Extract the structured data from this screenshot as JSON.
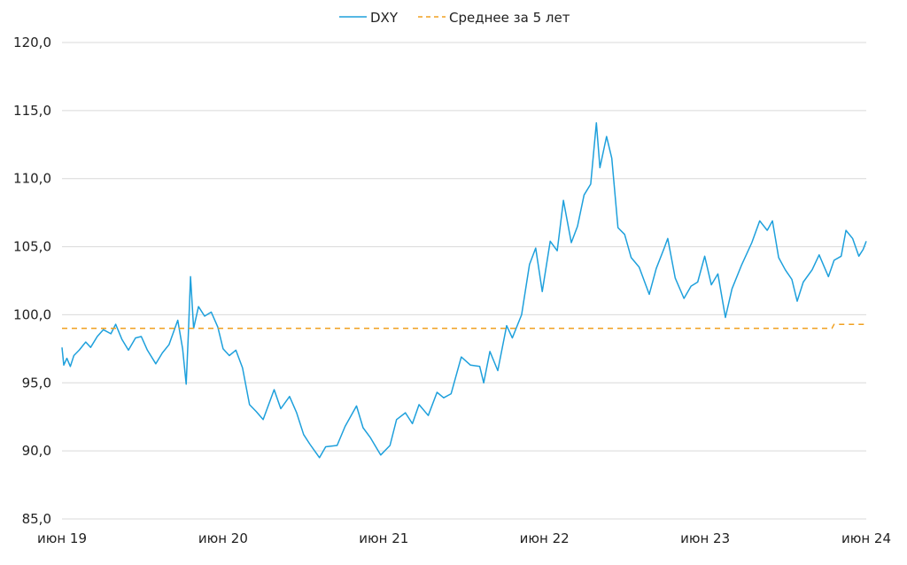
{
  "chart_data": {
    "type": "line",
    "title": "",
    "xlabel": "",
    "ylabel": "",
    "ylim": [
      85,
      120
    ],
    "yticks": [
      "85,0",
      "90,0",
      "95,0",
      "100,0",
      "105,0",
      "110,0",
      "115,0",
      "120,0"
    ],
    "ytick_values": [
      85,
      90,
      95,
      100,
      105,
      110,
      115,
      120
    ],
    "xticks": [
      {
        "label": "июн 19",
        "date": "2019-06-01"
      },
      {
        "label": "июн 20",
        "date": "2020-06-01"
      },
      {
        "label": "июн 21",
        "date": "2021-06-01"
      },
      {
        "label": "июн 22",
        "date": "2022-06-01"
      },
      {
        "label": "июн 23",
        "date": "2023-06-01"
      },
      {
        "label": "июн 24",
        "date": "2024-06-01"
      }
    ],
    "xlim": [
      "2019-06-01",
      "2024-06-01"
    ],
    "grid": "horizontal",
    "legend": "top-center",
    "series": [
      {
        "name": "DXY",
        "color": "#1ea0dc",
        "style": "solid",
        "points": [
          [
            "2019-06-01",
            97.6
          ],
          [
            "2019-06-05",
            96.3
          ],
          [
            "2019-06-12",
            96.8
          ],
          [
            "2019-06-20",
            96.2
          ],
          [
            "2019-06-28",
            97.0
          ],
          [
            "2019-07-10",
            97.4
          ],
          [
            "2019-07-25",
            98.0
          ],
          [
            "2019-08-05",
            97.6
          ],
          [
            "2019-08-20",
            98.4
          ],
          [
            "2019-09-03",
            98.9
          ],
          [
            "2019-09-20",
            98.6
          ],
          [
            "2019-10-01",
            99.3
          ],
          [
            "2019-10-15",
            98.2
          ],
          [
            "2019-10-30",
            97.4
          ],
          [
            "2019-11-15",
            98.3
          ],
          [
            "2019-11-28",
            98.4
          ],
          [
            "2019-12-12",
            97.4
          ],
          [
            "2019-12-31",
            96.4
          ],
          [
            "2020-01-15",
            97.2
          ],
          [
            "2020-01-30",
            97.8
          ],
          [
            "2020-02-19",
            99.6
          ],
          [
            "2020-03-01",
            97.5
          ],
          [
            "2020-03-09",
            94.9
          ],
          [
            "2020-03-14",
            98.5
          ],
          [
            "2020-03-19",
            102.8
          ],
          [
            "2020-03-26",
            99.0
          ],
          [
            "2020-04-06",
            100.6
          ],
          [
            "2020-04-20",
            99.9
          ],
          [
            "2020-05-05",
            100.2
          ],
          [
            "2020-05-20",
            99.1
          ],
          [
            "2020-06-01",
            97.5
          ],
          [
            "2020-06-15",
            97.0
          ],
          [
            "2020-06-30",
            97.4
          ],
          [
            "2020-07-15",
            96.1
          ],
          [
            "2020-07-31",
            93.4
          ],
          [
            "2020-08-15",
            92.9
          ],
          [
            "2020-08-31",
            92.3
          ],
          [
            "2020-09-25",
            94.5
          ],
          [
            "2020-10-10",
            93.1
          ],
          [
            "2020-10-30",
            94.0
          ],
          [
            "2020-11-15",
            92.8
          ],
          [
            "2020-12-01",
            91.2
          ],
          [
            "2020-12-15",
            90.5
          ],
          [
            "2021-01-06",
            89.5
          ],
          [
            "2021-01-20",
            90.3
          ],
          [
            "2021-02-15",
            90.4
          ],
          [
            "2021-03-05",
            91.8
          ],
          [
            "2021-03-31",
            93.3
          ],
          [
            "2021-04-15",
            91.7
          ],
          [
            "2021-05-01",
            91.0
          ],
          [
            "2021-05-25",
            89.7
          ],
          [
            "2021-06-15",
            90.4
          ],
          [
            "2021-06-30",
            92.3
          ],
          [
            "2021-07-20",
            92.8
          ],
          [
            "2021-08-05",
            92.0
          ],
          [
            "2021-08-20",
            93.4
          ],
          [
            "2021-09-10",
            92.6
          ],
          [
            "2021-09-30",
            94.3
          ],
          [
            "2021-10-15",
            93.9
          ],
          [
            "2021-11-01",
            94.2
          ],
          [
            "2021-11-24",
            96.9
          ],
          [
            "2021-12-15",
            96.3
          ],
          [
            "2022-01-05",
            96.2
          ],
          [
            "2022-01-14",
            95.0
          ],
          [
            "2022-01-28",
            97.3
          ],
          [
            "2022-02-15",
            95.9
          ],
          [
            "2022-03-07",
            99.2
          ],
          [
            "2022-03-20",
            98.3
          ],
          [
            "2022-04-10",
            100.0
          ],
          [
            "2022-04-28",
            103.7
          ],
          [
            "2022-05-12",
            104.9
          ],
          [
            "2022-05-27",
            101.7
          ],
          [
            "2022-06-14",
            105.4
          ],
          [
            "2022-06-30",
            104.7
          ],
          [
            "2022-07-14",
            108.4
          ],
          [
            "2022-08-01",
            105.3
          ],
          [
            "2022-08-15",
            106.5
          ],
          [
            "2022-08-30",
            108.8
          ],
          [
            "2022-09-14",
            109.6
          ],
          [
            "2022-09-27",
            114.1
          ],
          [
            "2022-10-05",
            110.8
          ],
          [
            "2022-10-20",
            113.1
          ],
          [
            "2022-11-01",
            111.5
          ],
          [
            "2022-11-15",
            106.4
          ],
          [
            "2022-11-30",
            105.9
          ],
          [
            "2022-12-15",
            104.2
          ],
          [
            "2023-01-02",
            103.5
          ],
          [
            "2023-01-25",
            101.5
          ],
          [
            "2023-02-10",
            103.4
          ],
          [
            "2023-02-28",
            104.9
          ],
          [
            "2023-03-08",
            105.6
          ],
          [
            "2023-03-25",
            102.7
          ],
          [
            "2023-04-14",
            101.2
          ],
          [
            "2023-04-30",
            102.1
          ],
          [
            "2023-05-15",
            102.4
          ],
          [
            "2023-05-31",
            104.3
          ],
          [
            "2023-06-15",
            102.2
          ],
          [
            "2023-06-30",
            103.0
          ],
          [
            "2023-07-17",
            99.8
          ],
          [
            "2023-08-01",
            101.9
          ],
          [
            "2023-08-22",
            103.6
          ],
          [
            "2023-09-15",
            105.3
          ],
          [
            "2023-10-03",
            106.9
          ],
          [
            "2023-10-20",
            106.2
          ],
          [
            "2023-11-01",
            106.9
          ],
          [
            "2023-11-15",
            104.2
          ],
          [
            "2023-11-30",
            103.3
          ],
          [
            "2023-12-15",
            102.6
          ],
          [
            "2023-12-27",
            101.0
          ],
          [
            "2024-01-10",
            102.4
          ],
          [
            "2024-01-30",
            103.3
          ],
          [
            "2024-02-15",
            104.4
          ],
          [
            "2024-03-07",
            102.8
          ],
          [
            "2024-03-20",
            104.0
          ],
          [
            "2024-04-05",
            104.3
          ],
          [
            "2024-04-16",
            106.2
          ],
          [
            "2024-05-01",
            105.6
          ],
          [
            "2024-05-15",
            104.3
          ],
          [
            "2024-05-25",
            104.8
          ],
          [
            "2024-06-01",
            105.4
          ]
        ]
      },
      {
        "name": "Среднее за 5 лет",
        "color": "#f0a020",
        "style": "dashed",
        "points": [
          [
            "2019-06-01",
            99.0
          ],
          [
            "2024-03-15",
            99.0
          ],
          [
            "2024-03-20",
            99.3
          ],
          [
            "2024-06-01",
            99.3
          ]
        ]
      }
    ]
  }
}
